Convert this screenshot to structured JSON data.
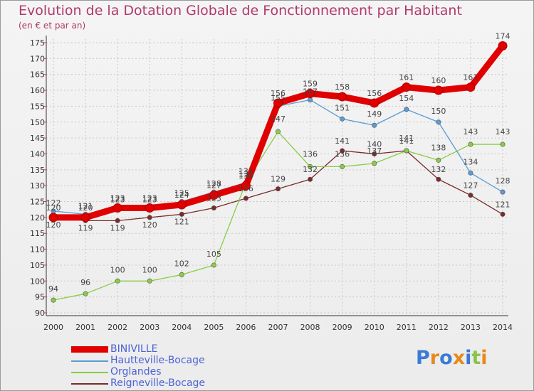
{
  "title": "Evolution de la Dotation Globale de Fonctionnement par Habitant",
  "subtitle": "(en € et par an)",
  "logo_text": "Proxiti",
  "chart_data": {
    "type": "line",
    "title": "Evolution de la Dotation Globale de Fonctionnement par Habitant",
    "ylabel": "(en € et par an)",
    "xlabel": "",
    "x": [
      "2000",
      "2001",
      "2002",
      "2003",
      "2004",
      "2005",
      "2006",
      "2007",
      "2008",
      "2009",
      "2010",
      "2011",
      "2012",
      "2013",
      "2014"
    ],
    "ylim": [
      90,
      175
    ],
    "yticks": [
      90,
      95,
      100,
      105,
      110,
      115,
      120,
      125,
      130,
      135,
      140,
      145,
      150,
      155,
      160,
      165,
      170,
      175
    ],
    "grid": true,
    "legend_position": "bottom-left",
    "series": [
      {
        "name": "BINIVILLE",
        "color": "#e00000",
        "values": [
          120,
          120,
          123,
          123,
          124,
          127,
          130,
          156,
          159,
          158,
          156,
          161,
          160,
          161,
          174
        ]
      },
      {
        "name": "Hautteville-Bocage",
        "color": "#5b9bd5",
        "values": [
          122,
          121,
          123,
          123,
          125,
          128,
          131,
          155,
          157,
          151,
          149,
          154,
          150,
          134,
          128
        ]
      },
      {
        "name": "Orglandes",
        "color": "#88cc44",
        "values": [
          94,
          96,
          100,
          100,
          102,
          105,
          131,
          147,
          136,
          136,
          137,
          141,
          138,
          143,
          143
        ]
      },
      {
        "name": "Reigneville-Bocage",
        "color": "#7b2b2b",
        "values": [
          120,
          119,
          119,
          120,
          121,
          123,
          126,
          129,
          132,
          141,
          140,
          141,
          132,
          127,
          121
        ]
      }
    ]
  }
}
